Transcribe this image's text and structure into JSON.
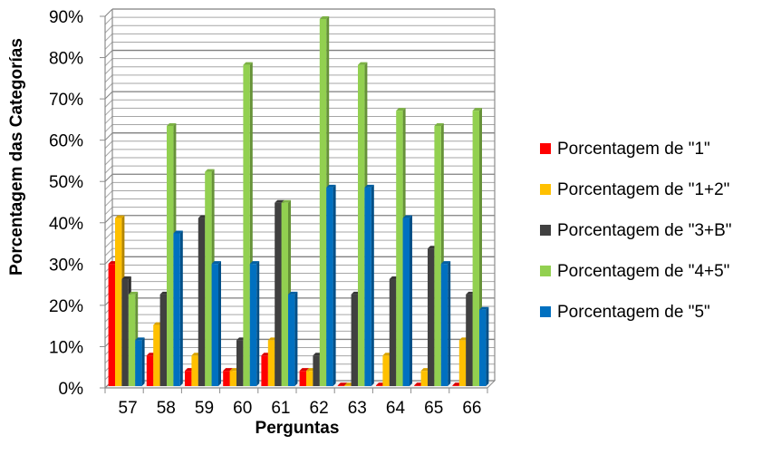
{
  "chart_data": {
    "type": "bar",
    "title": "",
    "xlabel": "Perguntas",
    "ylabel": "Porcentagem das Categorías",
    "ylim": [
      0,
      90
    ],
    "yticks": [
      "0%",
      "10%",
      "20%",
      "30%",
      "40%",
      "50%",
      "60%",
      "70%",
      "80%",
      "90%"
    ],
    "categories": [
      "57",
      "58",
      "59",
      "60",
      "61",
      "62",
      "63",
      "64",
      "65",
      "66"
    ],
    "grid": true,
    "legend_position": "right",
    "series": [
      {
        "name": "Porcentagem de \"1\"",
        "color": "#ff0000",
        "values": [
          29.6,
          7.4,
          3.7,
          3.7,
          7.4,
          3.7,
          0,
          0,
          0,
          0
        ]
      },
      {
        "name": "Porcentagem de \"1+2\"",
        "color": "#ffc000",
        "values": [
          40.7,
          14.8,
          7.4,
          3.7,
          11.1,
          3.7,
          0,
          7.4,
          3.7,
          11.1
        ]
      },
      {
        "name": "Porcentagem de \"3+B\"",
        "color": "#404040",
        "values": [
          25.9,
          22.2,
          40.7,
          11.1,
          44.4,
          7.4,
          22.2,
          25.9,
          33.3,
          22.2
        ]
      },
      {
        "name": "Porcentagem de \"4+5\"",
        "color": "#92d050",
        "values": [
          22.2,
          63.0,
          51.9,
          77.8,
          44.4,
          88.9,
          77.8,
          66.7,
          63.0,
          66.7
        ]
      },
      {
        "name": "Porcentagem de \"5\"",
        "color": "#0070c0",
        "values": [
          11.1,
          37.0,
          29.6,
          29.6,
          22.2,
          48.1,
          48.1,
          40.7,
          29.6,
          18.5
        ]
      }
    ]
  }
}
